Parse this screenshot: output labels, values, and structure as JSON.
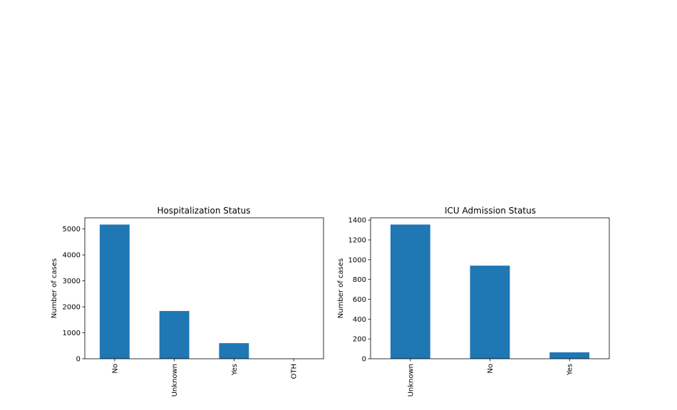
{
  "chart_data": [
    {
      "type": "bar",
      "title": "Hospitalization Status",
      "xlabel": "",
      "ylabel": "Number of cases",
      "categories": [
        "No",
        "Unknown",
        "Yes",
        "OTH"
      ],
      "values": [
        5170,
        1840,
        600,
        3
      ],
      "ylim": [
        0,
        5430
      ],
      "yticks": [
        0,
        1000,
        2000,
        3000,
        4000,
        5000
      ],
      "ytick_labels": [
        "0",
        "1000",
        "2000",
        "3000",
        "4000",
        "5000"
      ],
      "grid": false,
      "bar_color": "#1f77b4"
    },
    {
      "type": "bar",
      "title": "ICU Admission Status",
      "xlabel": "",
      "ylabel": "Number of cases",
      "categories": [
        "Unknown",
        "No",
        "Yes"
      ],
      "values": [
        1355,
        940,
        65
      ],
      "ylim": [
        0,
        1423
      ],
      "yticks": [
        0,
        200,
        400,
        600,
        800,
        1000,
        1200,
        1400
      ],
      "ytick_labels": [
        "0",
        "200",
        "400",
        "600",
        "800",
        "1000",
        "1200",
        "1400"
      ],
      "grid": false,
      "bar_color": "#1f77b4"
    }
  ]
}
